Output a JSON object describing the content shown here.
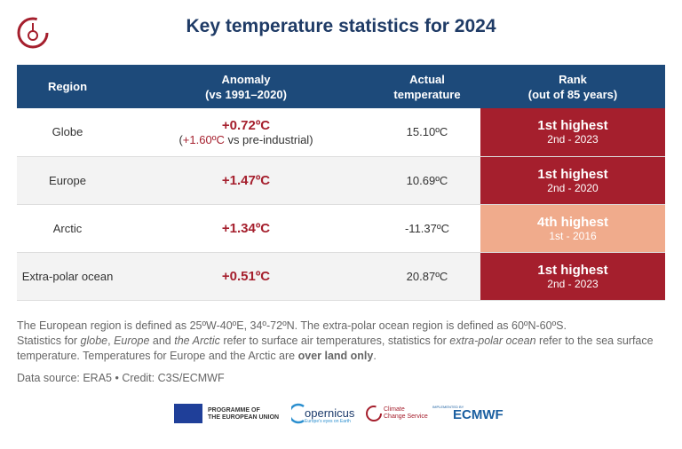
{
  "title": "Key temperature statistics for 2024",
  "table": {
    "header": [
      [
        "Region"
      ],
      [
        "Anomaly",
        "(vs 1991–2020)"
      ],
      [
        "Actual",
        "temperature"
      ],
      [
        "Rank",
        "(out of 85 years)"
      ]
    ],
    "rows": [
      {
        "region": "Globe",
        "anomaly": "+0.72ºC",
        "anomaly_note": [
          "(",
          "+1.60ºC",
          " vs pre-industrial)"
        ],
        "actual": "15.10ºC",
        "rank": "1st highest",
        "rank_note": "2nd - 2023",
        "rank_color": "#a51f2d"
      },
      {
        "region": "Europe",
        "anomaly": "+1.47ºC",
        "actual": "10.69ºC",
        "rank": "1st highest",
        "rank_note": "2nd - 2020",
        "rank_color": "#a51f2d"
      },
      {
        "region": "Arctic",
        "anomaly": "+1.34ºC",
        "actual": "-11.37ºC",
        "rank": "4th highest",
        "rank_note": "1st - 2016",
        "rank_color": "#f0ab8c"
      },
      {
        "region": "Extra-polar ocean",
        "anomaly": "+0.51ºC",
        "actual": "20.87ºC",
        "rank": "1st highest",
        "rank_note": "2nd - 2023",
        "rank_color": "#a51f2d"
      }
    ]
  },
  "notes": {
    "line1": "The European region is defined as 25ºW-40ºE, 34º-72ºN. The extra-polar ocean region is defined as 60ºN-60ºS.",
    "line2": [
      "Statistics for ",
      "globe",
      ", ",
      "Europe",
      " and ",
      "the Arctic",
      " refer to surface air temperatures, statistics for ",
      "extra-polar ocean",
      " refer to the sea surface temperature. Temperatures for Europe and the Arctic are ",
      "over land only",
      "."
    ]
  },
  "source": "Data source: ERA5 • Credit: C3S/ECMWF",
  "logos": {
    "eu": [
      "PROGRAMME OF",
      "THE EUROPEAN UNION"
    ],
    "copernicus": "opernicus",
    "copernicus_sub": "Europe's eyes on Earth",
    "c3s": [
      "Climate",
      "Change Service"
    ],
    "implemented": "IMPLEMENTED BY",
    "ecmwf": "ECMWF"
  }
}
